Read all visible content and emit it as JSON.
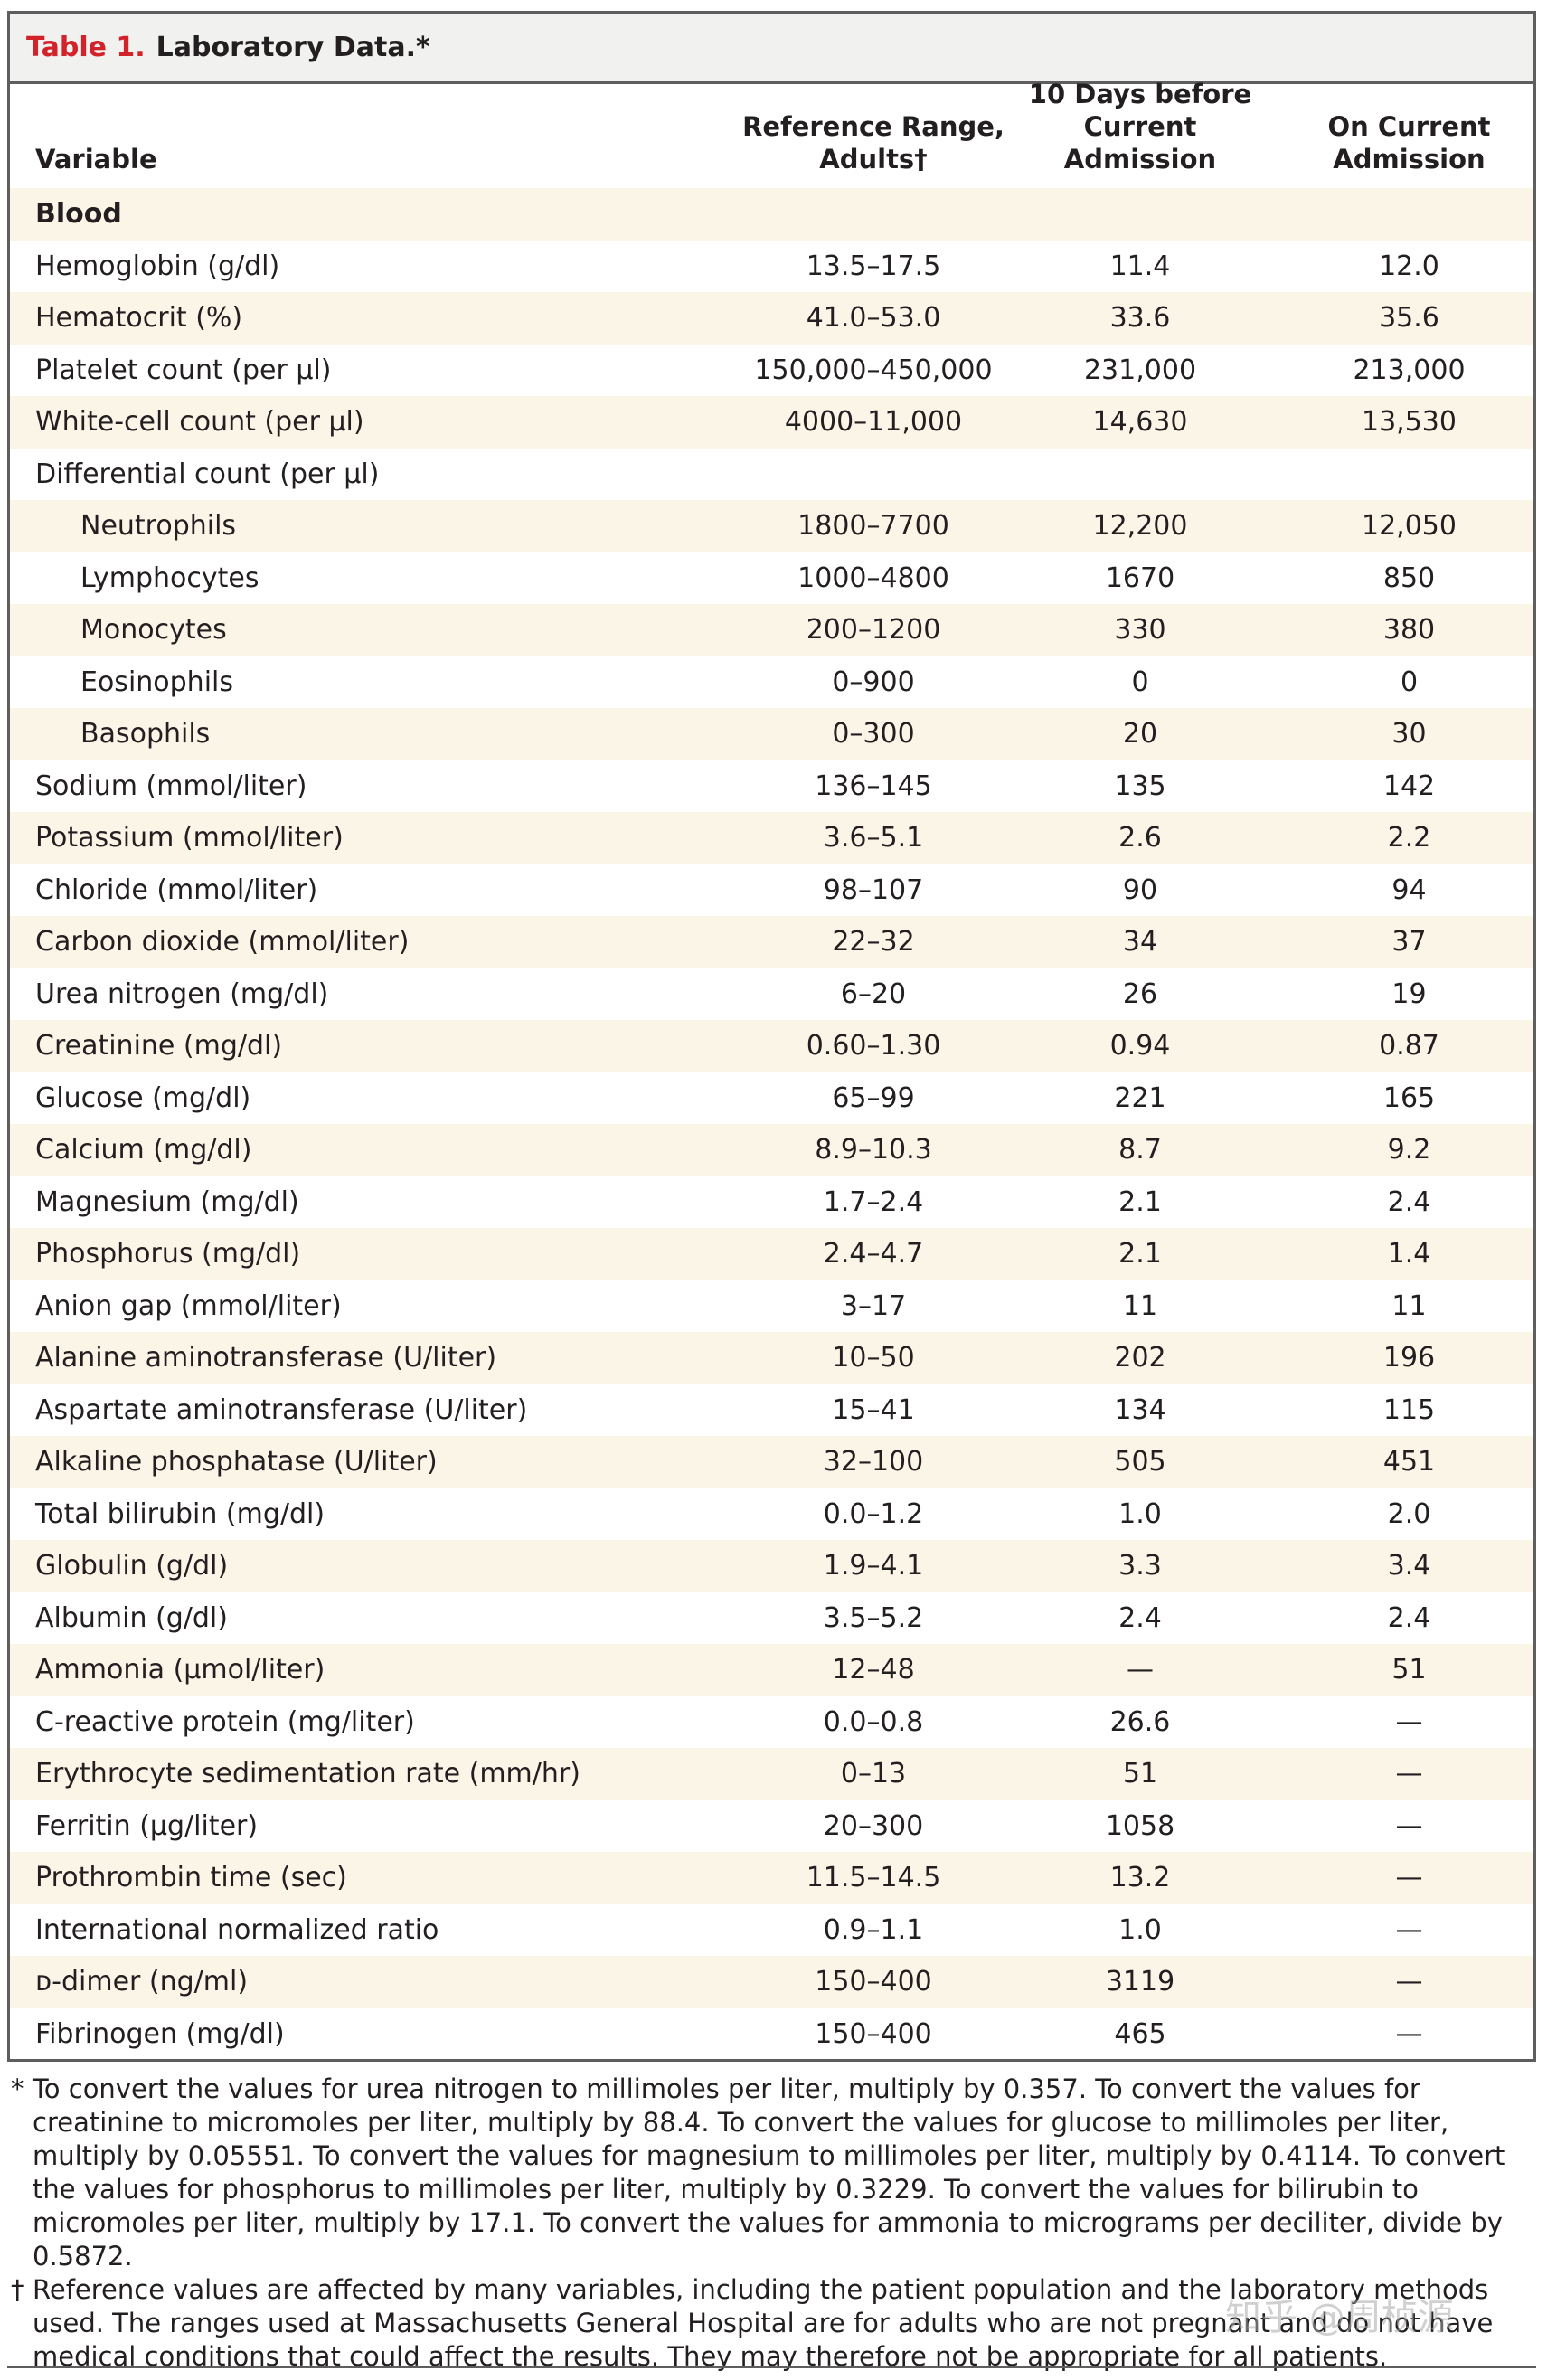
{
  "table": {
    "label": "Table 1.",
    "title": "Laboratory Data.*",
    "headers": {
      "variable": "Variable",
      "reference_line1": "Reference Range,",
      "reference_line2": "Adults†",
      "day10_line1": "10 Days before",
      "day10_line2": "Current Admission",
      "current_line1": "On Current",
      "current_line2": "Admission"
    },
    "rows": [
      {
        "variable": "Blood",
        "reference": "",
        "day10": "",
        "current": "",
        "type": "section"
      },
      {
        "variable": "Hemoglobin (g/dl)",
        "reference": "13.5–17.5",
        "day10": "11.4",
        "current": "12.0"
      },
      {
        "variable": "Hematocrit (%)",
        "reference": "41.0–53.0",
        "day10": "33.6",
        "current": "35.6"
      },
      {
        "variable": "Platelet count (per μl)",
        "reference": "150,000–450,000",
        "day10": "231,000",
        "current": "213,000"
      },
      {
        "variable": "White-cell count (per μl)",
        "reference": "4000–11,000",
        "day10": "14,630",
        "current": "13,530"
      },
      {
        "variable": "Differential count (per μl)",
        "reference": "",
        "day10": "",
        "current": ""
      },
      {
        "variable": "Neutrophils",
        "reference": "1800–7700",
        "day10": "12,200",
        "current": "12,050",
        "type": "indent"
      },
      {
        "variable": "Lymphocytes",
        "reference": "1000–4800",
        "day10": "1670",
        "current": "850",
        "type": "indent"
      },
      {
        "variable": "Monocytes",
        "reference": "200–1200",
        "day10": "330",
        "current": "380",
        "type": "indent"
      },
      {
        "variable": "Eosinophils",
        "reference": "0–900",
        "day10": "0",
        "current": "0",
        "type": "indent"
      },
      {
        "variable": "Basophils",
        "reference": "0–300",
        "day10": "20",
        "current": "30",
        "type": "indent"
      },
      {
        "variable": "Sodium (mmol/liter)",
        "reference": "136–145",
        "day10": "135",
        "current": "142"
      },
      {
        "variable": "Potassium (mmol/liter)",
        "reference": "3.6–5.1",
        "day10": "2.6",
        "current": "2.2"
      },
      {
        "variable": "Chloride (mmol/liter)",
        "reference": "98–107",
        "day10": "90",
        "current": "94"
      },
      {
        "variable": "Carbon dioxide (mmol/liter)",
        "reference": "22–32",
        "day10": "34",
        "current": "37"
      },
      {
        "variable": "Urea nitrogen (mg/dl)",
        "reference": "6–20",
        "day10": "26",
        "current": "19"
      },
      {
        "variable": "Creatinine (mg/dl)",
        "reference": "0.60–1.30",
        "day10": "0.94",
        "current": "0.87"
      },
      {
        "variable": "Glucose (mg/dl)",
        "reference": "65–99",
        "day10": "221",
        "current": "165"
      },
      {
        "variable": "Calcium (mg/dl)",
        "reference": "8.9–10.3",
        "day10": "8.7",
        "current": "9.2"
      },
      {
        "variable": "Magnesium (mg/dl)",
        "reference": "1.7–2.4",
        "day10": "2.1",
        "current": "2.4"
      },
      {
        "variable": "Phosphorus (mg/dl)",
        "reference": "2.4–4.7",
        "day10": "2.1",
        "current": "1.4"
      },
      {
        "variable": "Anion gap (mmol/liter)",
        "reference": "3–17",
        "day10": "11",
        "current": "11"
      },
      {
        "variable": "Alanine aminotransferase (U/liter)",
        "reference": "10–50",
        "day10": "202",
        "current": "196"
      },
      {
        "variable": "Aspartate aminotransferase (U/liter)",
        "reference": "15–41",
        "day10": "134",
        "current": "115"
      },
      {
        "variable": "Alkaline phosphatase (U/liter)",
        "reference": "32–100",
        "day10": "505",
        "current": "451"
      },
      {
        "variable": "Total bilirubin (mg/dl)",
        "reference": "0.0–1.2",
        "day10": "1.0",
        "current": "2.0"
      },
      {
        "variable": "Globulin (g/dl)",
        "reference": "1.9–4.1",
        "day10": "3.3",
        "current": "3.4"
      },
      {
        "variable": "Albumin (g/dl)",
        "reference": "3.5–5.2",
        "day10": "2.4",
        "current": "2.4"
      },
      {
        "variable": "Ammonia (μmol/liter)",
        "reference": "12–48",
        "day10": "—",
        "current": "51"
      },
      {
        "variable": "C-reactive protein (mg/liter)",
        "reference": "0.0–0.8",
        "day10": "26.6",
        "current": "—"
      },
      {
        "variable": "Erythrocyte sedimentation rate (mm/hr)",
        "reference": "0–13",
        "day10": "51",
        "current": "—"
      },
      {
        "variable": "Ferritin (μg/liter)",
        "reference": "20–300",
        "day10": "1058",
        "current": "—"
      },
      {
        "variable": "Prothrombin time (sec)",
        "reference": "11.5–14.5",
        "day10": "13.2",
        "current": "—"
      },
      {
        "variable": "International normalized ratio",
        "reference": "0.9–1.1",
        "day10": "1.0",
        "current": "—"
      },
      {
        "variable": "ᴅ-dimer (ng/ml)",
        "reference": "150–400",
        "day10": "3119",
        "current": "—"
      },
      {
        "variable": "Fibrinogen (mg/dl)",
        "reference": "150–400",
        "day10": "465",
        "current": "—"
      }
    ]
  },
  "footnotes": [
    {
      "mark": "*",
      "text": "To convert the values for urea nitrogen to millimoles per liter, multiply by 0.357. To convert the values for creatinine to micromoles per liter, multiply by 88.4. To convert the values for glucose to millimoles per liter, multiply by 0.05551. To convert the values for magnesium to millimoles per liter, multiply by 0.4114. To convert the values for phosphorus to millimoles per liter, multiply by 0.3229. To convert the values for bilirubin to micromoles per liter, multiply by 17.1. To convert the values for ammonia to micrograms per deciliter, divide by 0.5872."
    },
    {
      "mark": "†",
      "text": "Reference values are affected by many variables, including the patient population and the laboratory methods used. The ranges used at Massachusetts General Hospital are for adults who are not pregnant and do not have medical conditions that could affect the results. They may therefore not be appropriate for all patients."
    }
  ],
  "watermark": "知乎 @周桢源"
}
